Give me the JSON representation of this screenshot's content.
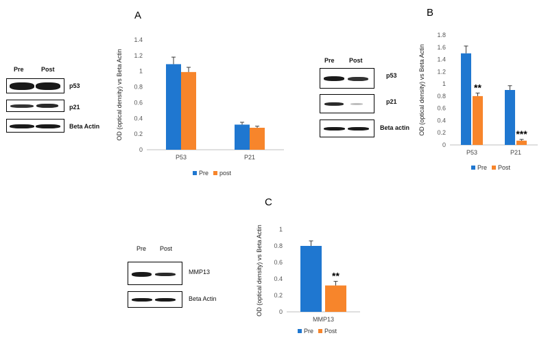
{
  "panels": {
    "A": {
      "letter": "A",
      "blot": {
        "lanes": [
          "Pre",
          "Post"
        ],
        "rows": [
          "p53",
          "p21",
          "Beta Actin"
        ]
      }
    },
    "B": {
      "letter": "B",
      "blot": {
        "lanes": [
          "Pre",
          "Post"
        ],
        "rows": [
          "p53",
          "p21",
          "Beta actin"
        ]
      }
    },
    "C": {
      "letter": "C",
      "blot": {
        "lanes": [
          "Pre",
          "Post"
        ],
        "rows": [
          "MMP13",
          "Beta Actin"
        ]
      }
    }
  },
  "colors": {
    "pre": "#1f77d0",
    "post": "#f7852b",
    "error": "#3a3a3a"
  },
  "chart_data": [
    {
      "id": "A",
      "type": "bar",
      "categories": [
        "P53",
        "P21"
      ],
      "series": [
        {
          "name": "Pre",
          "values": [
            1.09,
            0.32
          ],
          "errors": [
            0.09,
            0.03
          ]
        },
        {
          "name": "post",
          "values": [
            0.99,
            0.28
          ],
          "errors": [
            0.06,
            0.02
          ]
        }
      ],
      "ylabel": "OD (optical density)  vs Beta Actin",
      "ylim": [
        0,
        1.4
      ],
      "yticks": [
        "0",
        "0.2",
        "0.4",
        "0.6",
        "0.8",
        "1",
        "1.2",
        "1.4"
      ],
      "annotations": [],
      "legend": "bottom"
    },
    {
      "id": "B",
      "type": "bar",
      "categories": [
        "P53",
        "P21"
      ],
      "series": [
        {
          "name": "Pre",
          "values": [
            1.5,
            0.9
          ],
          "errors": [
            0.12,
            0.07
          ]
        },
        {
          "name": "Post",
          "values": [
            0.8,
            0.07
          ],
          "errors": [
            0.05,
            0.02
          ]
        }
      ],
      "ylabel": "OD (optical density)  vs Beta Actin",
      "ylim": [
        0,
        1.8
      ],
      "yticks": [
        "0",
        "0.2",
        "0.4",
        "0.6",
        "0.8",
        "1",
        "1.2",
        "1.4",
        "1.6",
        "1.8"
      ],
      "annotations": [
        {
          "category": 0,
          "series": 1,
          "text": "**"
        },
        {
          "category": 1,
          "series": 1,
          "text": "***"
        }
      ],
      "legend": "bottom"
    },
    {
      "id": "C",
      "type": "bar",
      "categories": [
        "MMP13"
      ],
      "series": [
        {
          "name": "Pre",
          "values": [
            0.8
          ],
          "errors": [
            0.06
          ]
        },
        {
          "name": "Post",
          "values": [
            0.32
          ],
          "errors": [
            0.05
          ]
        }
      ],
      "ylabel": "OD (optical density) vs Beta Actin",
      "ylim": [
        0,
        1
      ],
      "yticks": [
        "0",
        "0.2",
        "0.4",
        "0.6",
        "0.8",
        "1"
      ],
      "annotations": [
        {
          "category": 0,
          "series": 1,
          "text": "**"
        }
      ],
      "legend": "bottom"
    }
  ]
}
